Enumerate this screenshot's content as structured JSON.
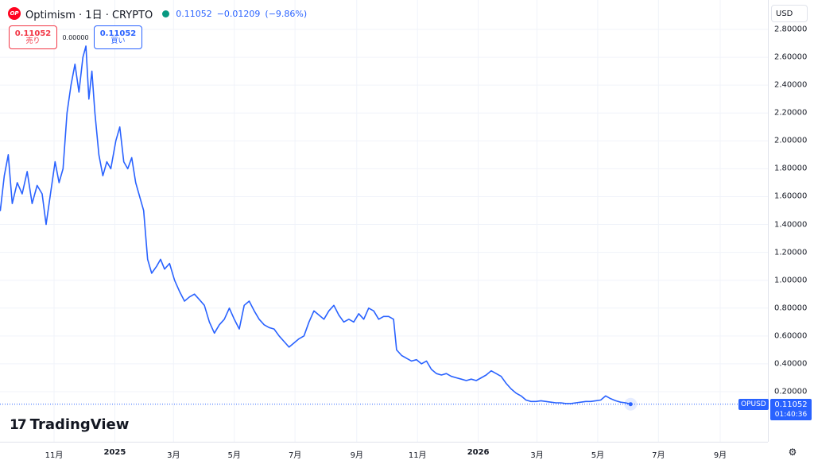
{
  "legend": {
    "logo_text": "OP",
    "title": "Optimism · 1日 · CRYPTO",
    "last_price": "0.11052",
    "change": "−0.01209",
    "change_pct": "(−9.86%)"
  },
  "trade": {
    "sell_price": "0.11052",
    "sell_label": "売り",
    "spread": "0.00000",
    "buy_price": "0.11052",
    "buy_label": "買い"
  },
  "currency": "USD",
  "price_tag": {
    "symbol": "OPUSD",
    "price": "0.11052",
    "countdown": "01:40:36"
  },
  "watermark": {
    "mark": "17",
    "text": "TradingView"
  },
  "colors": {
    "line": "#2962ff",
    "sell": "#f23645",
    "buy": "#2962ff",
    "status": "#089981",
    "grid": "#f0f3fa"
  },
  "icons": {
    "settings": "settings-icon",
    "logo": "optimism-logo-icon"
  },
  "chart_data": {
    "type": "line",
    "title": "Optimism · 1日 · CRYPTO",
    "xlabel": "",
    "ylabel": "",
    "ylim": [
      0.0,
      2.9
    ],
    "y_ticks": [
      "0.20000",
      "0.40000",
      "0.60000",
      "0.80000",
      "1.00000",
      "1.20000",
      "1.40000",
      "1.60000",
      "1.80000",
      "2.00000",
      "2.20000",
      "2.40000",
      "2.60000",
      "2.80000"
    ],
    "y_tick_values": [
      0.2,
      0.4,
      0.6,
      0.8,
      1.0,
      1.2,
      1.4,
      1.6,
      1.8,
      2.0,
      2.2,
      2.4,
      2.6,
      2.8
    ],
    "x_ticks": [
      {
        "label": "11月",
        "date": "2024-11-01",
        "major": false
      },
      {
        "label": "2025",
        "date": "2025-01-01",
        "major": true
      },
      {
        "label": "3月",
        "date": "2025-03-01",
        "major": false
      },
      {
        "label": "5月",
        "date": "2025-05-01",
        "major": false
      },
      {
        "label": "7月",
        "date": "2025-07-01",
        "major": false
      },
      {
        "label": "9月",
        "date": "2025-09-01",
        "major": false
      },
      {
        "label": "11月",
        "date": "2025-11-01",
        "major": false
      },
      {
        "label": "2026",
        "date": "2026-01-01",
        "major": true
      },
      {
        "label": "3月",
        "date": "2026-03-01",
        "major": false
      },
      {
        "label": "5月",
        "date": "2026-05-01",
        "major": false
      },
      {
        "label": "7月",
        "date": "2026-07-01",
        "major": false
      },
      {
        "label": "9月",
        "date": "2026-09-01",
        "major": false
      }
    ],
    "series": [
      {
        "name": "OPUSD",
        "points": [
          [
            "2024-09-05",
            1.6
          ],
          [
            "2024-09-08",
            1.5
          ],
          [
            "2024-09-12",
            1.75
          ],
          [
            "2024-09-16",
            1.9
          ],
          [
            "2024-09-20",
            1.55
          ],
          [
            "2024-09-25",
            1.7
          ],
          [
            "2024-09-30",
            1.62
          ],
          [
            "2024-10-05",
            1.78
          ],
          [
            "2024-10-10",
            1.55
          ],
          [
            "2024-10-15",
            1.68
          ],
          [
            "2024-10-20",
            1.62
          ],
          [
            "2024-10-24",
            1.4
          ],
          [
            "2024-10-28",
            1.6
          ],
          [
            "2024-11-02",
            1.85
          ],
          [
            "2024-11-06",
            1.7
          ],
          [
            "2024-11-10",
            1.8
          ],
          [
            "2024-11-14",
            2.2
          ],
          [
            "2024-11-18",
            2.4
          ],
          [
            "2024-11-22",
            2.55
          ],
          [
            "2024-11-26",
            2.35
          ],
          [
            "2024-11-30",
            2.6
          ],
          [
            "2024-12-03",
            2.68
          ],
          [
            "2024-12-06",
            2.3
          ],
          [
            "2024-12-09",
            2.5
          ],
          [
            "2024-12-12",
            2.2
          ],
          [
            "2024-12-16",
            1.9
          ],
          [
            "2024-12-20",
            1.75
          ],
          [
            "2024-12-24",
            1.85
          ],
          [
            "2024-12-28",
            1.8
          ],
          [
            "2025-01-02",
            2.0
          ],
          [
            "2025-01-06",
            2.1
          ],
          [
            "2025-01-10",
            1.85
          ],
          [
            "2025-01-14",
            1.8
          ],
          [
            "2025-01-18",
            1.88
          ],
          [
            "2025-01-22",
            1.7
          ],
          [
            "2025-01-26",
            1.6
          ],
          [
            "2025-01-30",
            1.5
          ],
          [
            "2025-02-03",
            1.15
          ],
          [
            "2025-02-07",
            1.05
          ],
          [
            "2025-02-12",
            1.1
          ],
          [
            "2025-02-16",
            1.15
          ],
          [
            "2025-02-20",
            1.08
          ],
          [
            "2025-02-25",
            1.12
          ],
          [
            "2025-03-02",
            1.0
          ],
          [
            "2025-03-07",
            0.92
          ],
          [
            "2025-03-12",
            0.85
          ],
          [
            "2025-03-17",
            0.88
          ],
          [
            "2025-03-22",
            0.9
          ],
          [
            "2025-03-27",
            0.86
          ],
          [
            "2025-04-01",
            0.82
          ],
          [
            "2025-04-06",
            0.7
          ],
          [
            "2025-04-11",
            0.62
          ],
          [
            "2025-04-16",
            0.68
          ],
          [
            "2025-04-21",
            0.72
          ],
          [
            "2025-04-26",
            0.8
          ],
          [
            "2025-05-01",
            0.72
          ],
          [
            "2025-05-06",
            0.65
          ],
          [
            "2025-05-11",
            0.82
          ],
          [
            "2025-05-16",
            0.85
          ],
          [
            "2025-05-21",
            0.78
          ],
          [
            "2025-05-26",
            0.72
          ],
          [
            "2025-05-31",
            0.68
          ],
          [
            "2025-06-05",
            0.66
          ],
          [
            "2025-06-10",
            0.65
          ],
          [
            "2025-06-15",
            0.6
          ],
          [
            "2025-06-20",
            0.56
          ],
          [
            "2025-06-25",
            0.52
          ],
          [
            "2025-06-30",
            0.55
          ],
          [
            "2025-07-05",
            0.58
          ],
          [
            "2025-07-10",
            0.6
          ],
          [
            "2025-07-15",
            0.7
          ],
          [
            "2025-07-20",
            0.78
          ],
          [
            "2025-07-25",
            0.75
          ],
          [
            "2025-07-30",
            0.72
          ],
          [
            "2025-08-04",
            0.78
          ],
          [
            "2025-08-09",
            0.82
          ],
          [
            "2025-08-14",
            0.75
          ],
          [
            "2025-08-19",
            0.7
          ],
          [
            "2025-08-24",
            0.72
          ],
          [
            "2025-08-29",
            0.7
          ],
          [
            "2025-09-03",
            0.76
          ],
          [
            "2025-09-08",
            0.72
          ],
          [
            "2025-09-13",
            0.8
          ],
          [
            "2025-09-18",
            0.78
          ],
          [
            "2025-09-23",
            0.72
          ],
          [
            "2025-09-28",
            0.74
          ],
          [
            "2025-10-03",
            0.74
          ],
          [
            "2025-10-08",
            0.72
          ],
          [
            "2025-10-11",
            0.5
          ],
          [
            "2025-10-16",
            0.46
          ],
          [
            "2025-10-21",
            0.44
          ],
          [
            "2025-10-26",
            0.42
          ],
          [
            "2025-10-31",
            0.43
          ],
          [
            "2025-11-05",
            0.4
          ],
          [
            "2025-11-10",
            0.42
          ],
          [
            "2025-11-15",
            0.36
          ],
          [
            "2025-11-20",
            0.33
          ],
          [
            "2025-11-25",
            0.32
          ],
          [
            "2025-11-30",
            0.33
          ],
          [
            "2025-12-05",
            0.31
          ],
          [
            "2025-12-10",
            0.3
          ],
          [
            "2025-12-15",
            0.29
          ],
          [
            "2025-12-20",
            0.28
          ],
          [
            "2025-12-25",
            0.29
          ],
          [
            "2025-12-30",
            0.28
          ],
          [
            "2026-01-04",
            0.3
          ],
          [
            "2026-01-09",
            0.32
          ],
          [
            "2026-01-14",
            0.35
          ],
          [
            "2026-01-19",
            0.33
          ],
          [
            "2026-01-24",
            0.31
          ],
          [
            "2026-01-29",
            0.26
          ],
          [
            "2026-02-03",
            0.22
          ],
          [
            "2026-02-08",
            0.19
          ],
          [
            "2026-02-13",
            0.17
          ],
          [
            "2026-02-18",
            0.14
          ],
          [
            "2026-02-23",
            0.13
          ],
          [
            "2026-02-28",
            0.13
          ],
          [
            "2026-03-05",
            0.135
          ],
          [
            "2026-03-10",
            0.13
          ],
          [
            "2026-03-15",
            0.125
          ],
          [
            "2026-03-20",
            0.12
          ],
          [
            "2026-03-25",
            0.12
          ],
          [
            "2026-03-30",
            0.115
          ],
          [
            "2026-04-04",
            0.115
          ],
          [
            "2026-04-09",
            0.12
          ],
          [
            "2026-04-14",
            0.125
          ],
          [
            "2026-04-19",
            0.13
          ],
          [
            "2026-04-24",
            0.13
          ],
          [
            "2026-04-29",
            0.135
          ],
          [
            "2026-05-04",
            0.14
          ],
          [
            "2026-05-09",
            0.17
          ],
          [
            "2026-05-14",
            0.15
          ],
          [
            "2026-05-19",
            0.135
          ],
          [
            "2026-05-24",
            0.125
          ],
          [
            "2026-05-29",
            0.12
          ],
          [
            "2026-06-03",
            0.11052
          ]
        ]
      }
    ],
    "last_value": 0.11052,
    "grid": true,
    "legend_position": "top-left"
  }
}
